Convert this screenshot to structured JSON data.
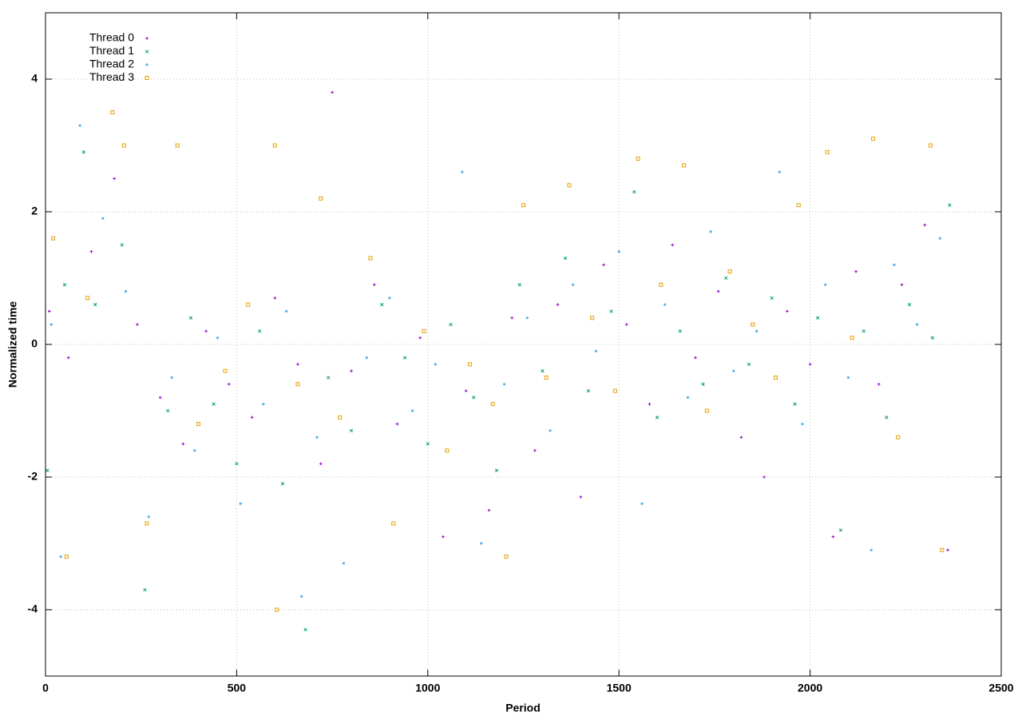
{
  "chart_data": {
    "type": "scatter",
    "xlabel": "Period",
    "ylabel": "Normalized time",
    "xlim": [
      0,
      2500
    ],
    "ylim": [
      -5,
      5
    ],
    "xticks": [
      0,
      500,
      1000,
      1500,
      2000,
      2500
    ],
    "yticks": [
      -4,
      -2,
      0,
      2,
      4
    ],
    "grid": true,
    "legend": "top-left",
    "series": [
      {
        "name": "Thread 0",
        "color": "#9400d3",
        "marker": "plus",
        "x": [
          10,
          60,
          120,
          180,
          240,
          300,
          360,
          420,
          480,
          540,
          600,
          660,
          720,
          750,
          800,
          860,
          920,
          980,
          1040,
          1100,
          1160,
          1220,
          1280,
          1340,
          1400,
          1460,
          1520,
          1580,
          1640,
          1700,
          1760,
          1820,
          1880,
          1940,
          2000,
          2060,
          2120,
          2180,
          2240,
          2300,
          2360
        ],
        "values": [
          0.5,
          -0.2,
          1.4,
          2.5,
          0.3,
          -0.8,
          -1.5,
          0.2,
          -0.6,
          -1.1,
          0.7,
          -0.3,
          -1.8,
          3.8,
          -0.4,
          0.9,
          -1.2,
          0.1,
          -2.9,
          -0.7,
          -2.5,
          0.4,
          -1.6,
          0.6,
          -2.3,
          1.2,
          0.3,
          -0.9,
          1.5,
          -0.2,
          0.8,
          -1.4,
          -2.0,
          0.5,
          -0.3,
          -2.9,
          1.1,
          -0.6,
          0.9,
          1.8,
          -3.1
        ]
      },
      {
        "name": "Thread 1",
        "color": "#009e73",
        "marker": "cross",
        "x": [
          5,
          50,
          100,
          130,
          200,
          260,
          320,
          380,
          440,
          500,
          560,
          620,
          680,
          740,
          800,
          880,
          940,
          1000,
          1060,
          1120,
          1180,
          1240,
          1300,
          1360,
          1420,
          1480,
          1540,
          1600,
          1660,
          1720,
          1780,
          1840,
          1900,
          1960,
          2020,
          2080,
          2140,
          2200,
          2260,
          2320,
          2365
        ],
        "values": [
          -1.9,
          0.9,
          2.9,
          0.6,
          1.5,
          -3.7,
          -1.0,
          0.4,
          -0.9,
          -1.8,
          0.2,
          -2.1,
          -4.3,
          -0.5,
          -1.3,
          0.6,
          -0.2,
          -1.5,
          0.3,
          -0.8,
          -1.9,
          0.9,
          -0.4,
          1.3,
          -0.7,
          0.5,
          2.3,
          -1.1,
          0.2,
          -0.6,
          1.0,
          -0.3,
          0.7,
          -0.9,
          0.4,
          -2.8,
          0.2,
          -1.1,
          0.6,
          0.1,
          2.1
        ]
      },
      {
        "name": "Thread 2",
        "color": "#56b4e9",
        "marker": "star",
        "x": [
          15,
          40,
          90,
          150,
          210,
          270,
          330,
          390,
          450,
          510,
          570,
          630,
          670,
          710,
          780,
          840,
          900,
          960,
          1020,
          1090,
          1140,
          1200,
          1260,
          1320,
          1380,
          1440,
          1500,
          1560,
          1620,
          1680,
          1740,
          1800,
          1860,
          1920,
          1980,
          2040,
          2100,
          2160,
          2220,
          2280,
          2340
        ],
        "values": [
          0.3,
          -3.2,
          3.3,
          1.9,
          0.8,
          -2.6,
          -0.5,
          -1.6,
          0.1,
          -2.4,
          -0.9,
          0.5,
          -3.8,
          -1.4,
          -3.3,
          -0.2,
          0.7,
          -1.0,
          -0.3,
          2.6,
          -3.0,
          -0.6,
          0.4,
          -1.3,
          0.9,
          -0.1,
          1.4,
          -2.4,
          0.6,
          -0.8,
          1.7,
          -0.4,
          0.2,
          2.6,
          -1.2,
          0.9,
          -0.5,
          -3.1,
          1.2,
          0.3,
          1.6
        ]
      },
      {
        "name": "Thread 3",
        "color": "#e69f00",
        "marker": "square",
        "x": [
          20,
          55,
          110,
          175,
          205,
          265,
          345,
          400,
          470,
          530,
          600,
          605,
          660,
          720,
          770,
          850,
          910,
          990,
          1050,
          1110,
          1170,
          1205,
          1250,
          1310,
          1370,
          1430,
          1490,
          1550,
          1610,
          1670,
          1730,
          1790,
          1850,
          1910,
          1970,
          2045,
          2110,
          2165,
          2230,
          2315,
          2345
        ],
        "values": [
          1.6,
          -3.2,
          0.7,
          3.5,
          3.0,
          -2.7,
          3.0,
          -1.2,
          -0.4,
          0.6,
          3.0,
          -4.0,
          -0.6,
          2.2,
          -1.1,
          1.3,
          -2.7,
          0.2,
          -1.6,
          -0.3,
          -0.9,
          -3.2,
          2.1,
          -0.5,
          2.4,
          0.4,
          -0.7,
          2.8,
          0.9,
          2.7,
          -1.0,
          1.1,
          0.3,
          -0.5,
          2.1,
          2.9,
          0.1,
          3.1,
          -1.4,
          3.0,
          -3.1
        ]
      }
    ]
  }
}
